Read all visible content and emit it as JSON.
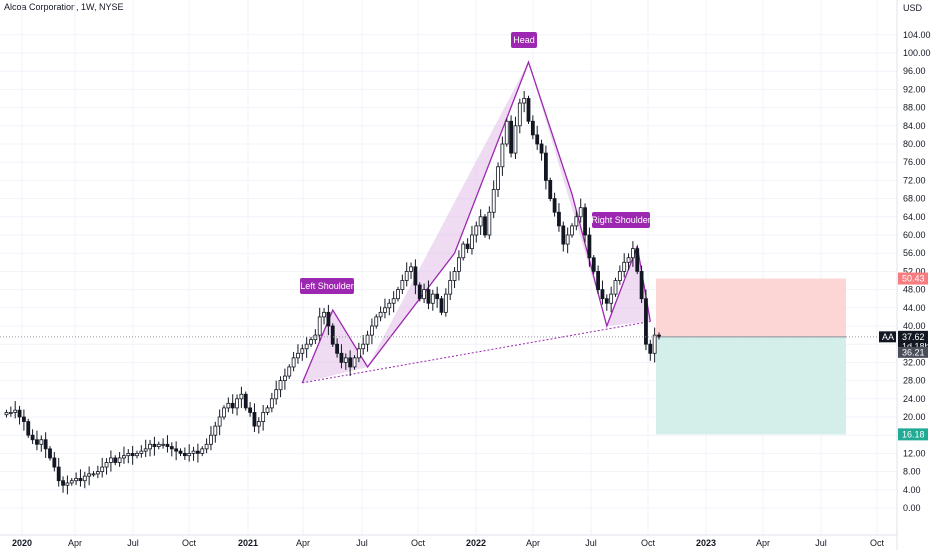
{
  "title": "Alcoa Corporation, 1W, NYSE",
  "currency": "USD",
  "colors": {
    "pattern_line": "#9c27b0",
    "pattern_fill": "#e1bee7",
    "label_bg": "#9c27b0",
    "stop_zone": "#fcd5d5",
    "target_zone": "#d4efe9",
    "stop_tag": "#f77c80",
    "target_tag": "#22ab94",
    "price_tag": "#131722"
  },
  "chart_data": {
    "type": "candlestick",
    "ylim": [
      -2,
      112
    ],
    "y_ticks": [
      "104.00",
      "100.00",
      "96.00",
      "92.00",
      "88.00",
      "84.00",
      "80.00",
      "76.00",
      "72.00",
      "68.00",
      "64.00",
      "60.00",
      "56.00",
      "52.00",
      "48.00",
      "44.00",
      "40.00",
      "36.00",
      "32.00",
      "28.00",
      "24.00",
      "20.00",
      "16.00",
      "12.00",
      "8.00",
      "4.00",
      "0.00"
    ],
    "x_ticks": [
      {
        "label": "2020",
        "year": true
      },
      {
        "label": "Apr",
        "year": false
      },
      {
        "label": "Jul",
        "year": false
      },
      {
        "label": "Oct",
        "year": false
      },
      {
        "label": "2021",
        "year": true
      },
      {
        "label": "Apr",
        "year": false
      },
      {
        "label": "Jul",
        "year": false
      },
      {
        "label": "Oct",
        "year": false
      },
      {
        "label": "2022",
        "year": true
      },
      {
        "label": "Apr",
        "year": false
      },
      {
        "label": "Jul",
        "year": false
      },
      {
        "label": "Oct",
        "year": false
      },
      {
        "label": "2023",
        "year": true
      },
      {
        "label": "Apr",
        "year": false
      },
      {
        "label": "Jul",
        "year": false
      },
      {
        "label": "Oct",
        "year": false
      }
    ],
    "closes": [
      21,
      21,
      21.5,
      20,
      19,
      16,
      15,
      14,
      15,
      13,
      11,
      9,
      6,
      5,
      5.5,
      6,
      6.5,
      6,
      7,
      7.5,
      7.5,
      8,
      9,
      10,
      11,
      10,
      11,
      11.5,
      12,
      11.5,
      12,
      12.5,
      13,
      14,
      13.5,
      14,
      14,
      13.5,
      13,
      12.5,
      12,
      11.5,
      12,
      12.5,
      12,
      13,
      14,
      16,
      18,
      20,
      22,
      23,
      22,
      24,
      25,
      22,
      21,
      18,
      19,
      21,
      22,
      24,
      26,
      28,
      29,
      31,
      33,
      34,
      35,
      36,
      37,
      38,
      42,
      43,
      40,
      36,
      34,
      32,
      33,
      31,
      33,
      35,
      36,
      38,
      40,
      42,
      43,
      44,
      45,
      46,
      48,
      50,
      52,
      53,
      49,
      46,
      48,
      45,
      47,
      46,
      43,
      47,
      50,
      52,
      55,
      58,
      57,
      60,
      62,
      64,
      60,
      65,
      70,
      75,
      80,
      85,
      78,
      84,
      89,
      90,
      85,
      82,
      80,
      78,
      72,
      68,
      65,
      62,
      58,
      60,
      62,
      64,
      66,
      60,
      55,
      52,
      48,
      46,
      45,
      47,
      50,
      52,
      54,
      55,
      57,
      52,
      46,
      36,
      34,
      38,
      37.62
    ],
    "pattern": {
      "labels": [
        "Left Shoulder",
        "Head",
        "Right Shoulder"
      ],
      "points": [
        [
          68,
          27.5
        ],
        [
          75,
          43.5
        ],
        [
          83,
          31
        ],
        [
          103,
          56
        ],
        [
          120,
          98
        ],
        [
          130,
          69
        ],
        [
          138,
          40
        ],
        [
          145,
          57.5
        ],
        [
          148,
          41
        ]
      ],
      "neckline": [
        [
          68,
          27.5
        ],
        [
          148,
          41
        ]
      ]
    },
    "position": {
      "stop": 50.43,
      "entry": 37.62,
      "target": 16.18,
      "stop_label": "50.43",
      "target_label": "16.18"
    },
    "last_price": {
      "symbol": "AA",
      "value": "37.62",
      "countdown": "1d 18h",
      "secondary": "36.21"
    }
  }
}
